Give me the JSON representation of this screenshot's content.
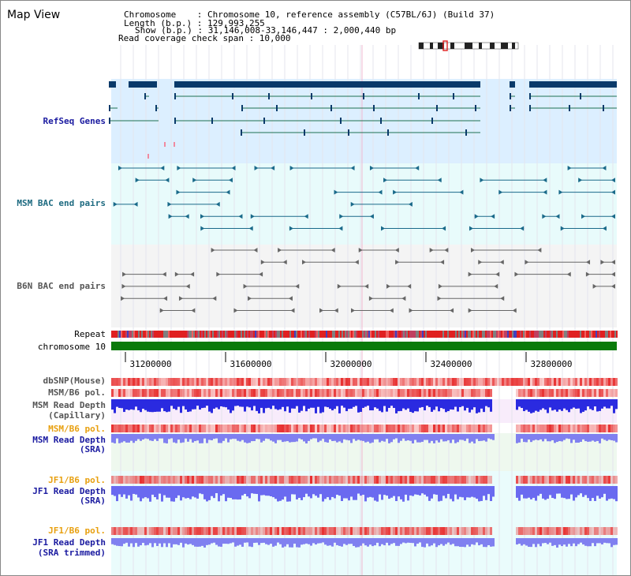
{
  "view_title": "Map View",
  "header": {
    "chromosome_line": "Chromosome    : Chromosome 10, reference assembly (C57BL/6J) (Build 37)",
    "length_line": "Length (b.p.) : 129,993,255",
    "show_line": "Show (b.p.) : 31,146,008-33,146,447 : 2,000,440 bp",
    "coverage_line": "Read coverage check span : 10,000"
  },
  "tracks": {
    "refseq": "RefSeq Genes",
    "msm_bac": "MSM BAC end pairs",
    "b6n_bac": "B6N BAC end pairs",
    "repeat": "Repeat",
    "chromosome": "chromosome 10",
    "dbsnp": "dbSNP(Mouse)",
    "msm_b6_pol": "MSM/B6 pol.",
    "msm_read_depth_cap_1": "MSM Read Depth",
    "msm_read_depth_cap_2": "(Capillary)",
    "msm_b6_pol_2": "MSM/B6 pol.",
    "msm_read_depth_sra_1": "MSM Read Depth",
    "msm_read_depth_sra_2": "(SRA)",
    "jf1_b6_pol": "JF1/B6 pol.",
    "jf1_read_depth_sra_1": "JF1 Read Depth",
    "jf1_read_depth_sra_2": "(SRA)",
    "jf1_b6_pol_2": "JF1/B6 pol.",
    "jf1_read_depth_trim_1": "JF1 Read Depth",
    "jf1_read_depth_trim_2": "(SRA trimmed)"
  },
  "axis": {
    "ticks": [
      "31200000",
      "31600000",
      "32000000",
      "32400000",
      "32800000"
    ]
  },
  "colors": {
    "refseq_bg": "#dcefff",
    "msm_bg": "#e8fbfb",
    "b6n_bg": "#f4f4f4",
    "gene": "#0a3a6a",
    "gene_line": "#1e7050",
    "msm_pair": "#1a6a8a",
    "b6n_pair": "#666666",
    "chromosome": "#0a7a0a",
    "depth_blue": "#2a2ae0",
    "depth_light": "#8080f0",
    "pol_red": "#e83030"
  }
}
